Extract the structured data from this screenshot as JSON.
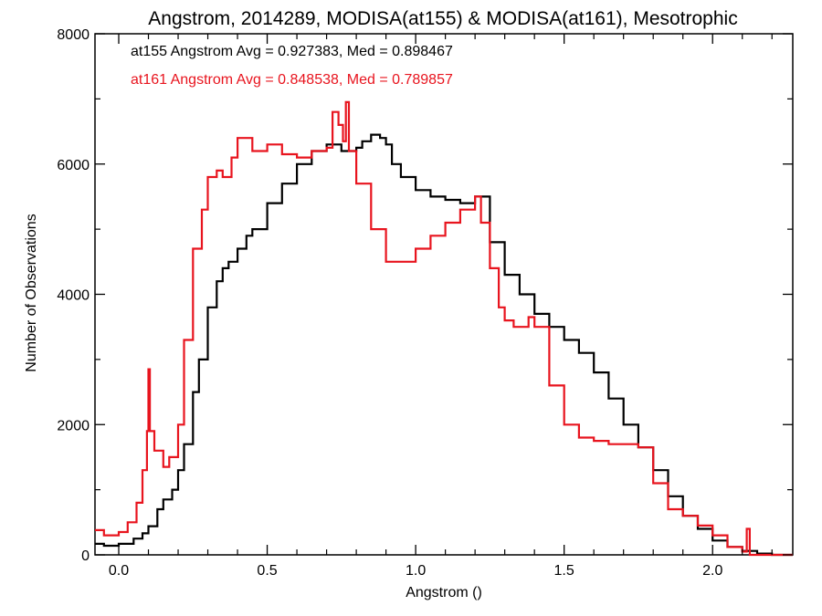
{
  "chart_data": {
    "type": "line",
    "style": "step",
    "title": "Angstrom, 2014289, MODISA(at155) & MODISA(at161), Mesotrophic",
    "xlabel": "Angstrom ()",
    "ylabel": "Number of Observations",
    "xlim": [
      -0.08,
      2.27
    ],
    "ylim": [
      0,
      8000
    ],
    "x_ticks": [
      0.0,
      0.5,
      1.0,
      1.5,
      2.0
    ],
    "x_tick_labels": [
      "0.0",
      "0.5",
      "1.0",
      "1.5",
      "2.0"
    ],
    "y_ticks": [
      0,
      2000,
      4000,
      6000,
      8000
    ],
    "y_tick_labels": [
      "0",
      "2000",
      "4000",
      "6000",
      "8000"
    ],
    "grid": false,
    "annotations": [
      {
        "text": "at155 Angstrom Avg = 0.927383, Med = 0.898467",
        "color": "#000000"
      },
      {
        "text": "at161 Angstrom Avg = 0.848538, Med = 0.789857",
        "color": "#e8141e"
      }
    ],
    "series": [
      {
        "color": "#000000",
        "x": [
          -0.08,
          -0.05,
          0.0,
          0.05,
          0.08,
          0.1,
          0.13,
          0.15,
          0.18,
          0.2,
          0.22,
          0.25,
          0.27,
          0.3,
          0.33,
          0.35,
          0.37,
          0.4,
          0.43,
          0.45,
          0.5,
          0.55,
          0.6,
          0.65,
          0.7,
          0.75,
          0.8,
          0.82,
          0.85,
          0.88,
          0.9,
          0.92,
          0.95,
          1.0,
          1.05,
          1.1,
          1.15,
          1.2,
          1.25,
          1.3,
          1.35,
          1.4,
          1.45,
          1.5,
          1.55,
          1.6,
          1.65,
          1.7,
          1.75,
          1.8,
          1.85,
          1.9,
          1.95,
          2.0,
          2.05,
          2.1,
          2.15,
          2.2,
          2.27
        ],
        "y": [
          170,
          140,
          170,
          250,
          330,
          440,
          700,
          850,
          1000,
          1300,
          1700,
          2500,
          3000,
          3800,
          4200,
          4400,
          4500,
          4700,
          4900,
          5000,
          5400,
          5700,
          6000,
          6200,
          6300,
          6200,
          6250,
          6350,
          6450,
          6400,
          6300,
          6000,
          5800,
          5600,
          5500,
          5450,
          5400,
          5500,
          4800,
          4300,
          4000,
          3700,
          3500,
          3300,
          3100,
          2800,
          2400,
          2000,
          1650,
          1300,
          900,
          600,
          400,
          220,
          120,
          60,
          20,
          0,
          0
        ]
      },
      {
        "color": "#e8141e",
        "x": [
          -0.08,
          -0.05,
          0.0,
          0.03,
          0.06,
          0.08,
          0.095,
          0.1,
          0.105,
          0.12,
          0.15,
          0.17,
          0.2,
          0.22,
          0.25,
          0.28,
          0.3,
          0.33,
          0.35,
          0.38,
          0.4,
          0.45,
          0.5,
          0.55,
          0.6,
          0.65,
          0.7,
          0.72,
          0.74,
          0.755,
          0.765,
          0.775,
          0.8,
          0.85,
          0.9,
          0.95,
          1.0,
          1.05,
          1.1,
          1.15,
          1.2,
          1.22,
          1.25,
          1.28,
          1.3,
          1.33,
          1.35,
          1.38,
          1.4,
          1.45,
          1.5,
          1.55,
          1.6,
          1.65,
          1.7,
          1.75,
          1.8,
          1.85,
          1.9,
          1.95,
          2.0,
          2.05,
          2.1,
          2.115,
          2.125,
          2.15,
          2.27
        ],
        "y": [
          380,
          300,
          350,
          500,
          800,
          1300,
          1900,
          2850,
          1900,
          1600,
          1350,
          1500,
          2000,
          3300,
          4700,
          5300,
          5800,
          5900,
          5800,
          6100,
          6400,
          6200,
          6300,
          6150,
          6100,
          6200,
          6250,
          6800,
          6600,
          6350,
          6950,
          6200,
          5700,
          5000,
          4500,
          4500,
          4700,
          4900,
          5100,
          5300,
          5500,
          5100,
          4400,
          3800,
          3600,
          3500,
          3500,
          3650,
          3500,
          2600,
          2000,
          1800,
          1750,
          1700,
          1700,
          1650,
          1100,
          700,
          600,
          450,
          300,
          120,
          50,
          400,
          0,
          0,
          0
        ]
      }
    ]
  }
}
